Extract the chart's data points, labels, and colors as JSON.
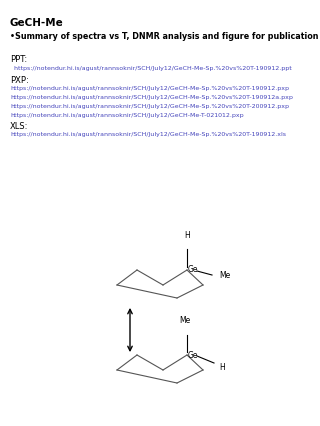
{
  "title": "GeCH-Me",
  "subtitle": "•Summary of spectra vs T, DNMR analysis and figure for publication",
  "ppt_label": "PPT:",
  "ppt_link": "  https://notendur.hi.is/agust/rannsoknir/SCH/July12/GeCH-Me-Sp.%20vs%20T-190912.ppt",
  "pxp_label": "PXP:",
  "pxp_links": [
    "https://notendur.hi.is/agust/rannsoknir/SCH/July12/GeCH-Me-Sp.%20vs%20T-190912.pxp",
    "https://notendur.hi.is/agust/rannsoknir/SCH/July12/GeCH-Me-Sp.%20vs%20T-190912a.pxp",
    "https://notendur.hi.is/agust/rannsoknir/SCH/July12/GeCH-Me-Sp.%20vs%20T-200912.pxp",
    "https://notendur.hi.is/agust/rannsoknir/SCH/July12/GeCH-Me-T-021012.pxp"
  ],
  "xls_label": "XLS:",
  "xls_link": "https://notendur.hi.is/agust/rannsoknir/SCH/July12/GeCH-Me-Sp.%20vs%20T-190912.xls",
  "title_fontsize": 7.5,
  "subtitle_fontsize": 5.8,
  "label_fontsize": 6.0,
  "link_fontsize": 4.5,
  "bg_color": "#ffffff",
  "text_color": "#000000",
  "link_color": "#4444bb"
}
